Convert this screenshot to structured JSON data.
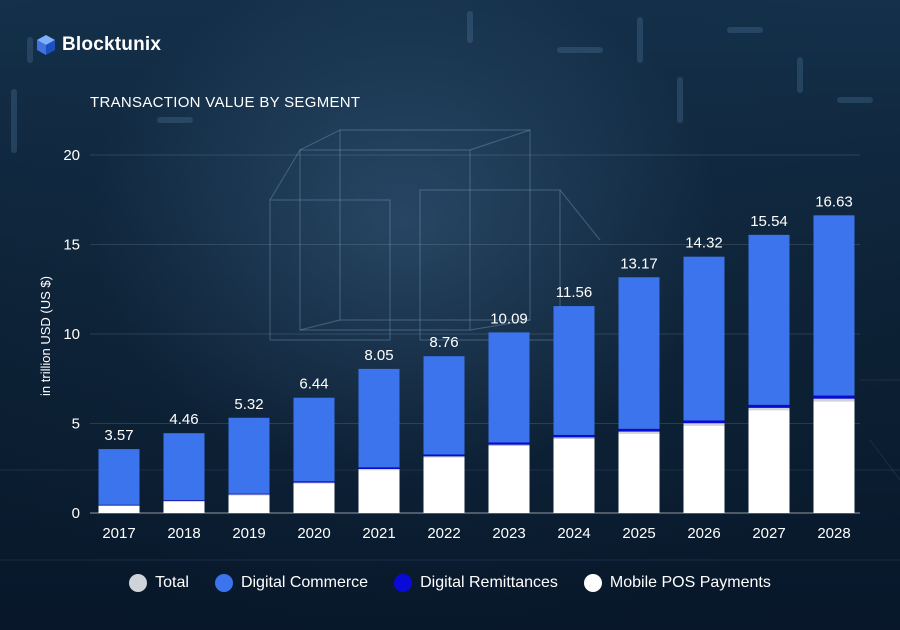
{
  "brand": {
    "name": "Blocktunix",
    "logo_icon": "cube-icon"
  },
  "colors": {
    "digital_commerce": "#3b74ec",
    "digital_remittances": "#0a0ad8",
    "mobile_pos": "#ffffff",
    "total": "#cfd4da",
    "text": "#ffffff"
  },
  "chart_data": {
    "type": "bar",
    "stacked": true,
    "title": "TRANSACTION VALUE BY SEGMENT",
    "ylabel": "in trillion USD (US $)",
    "xlabel": "",
    "ylim": [
      0,
      20
    ],
    "yticks": [
      0,
      5,
      10,
      15,
      20
    ],
    "grid": true,
    "legend_position": "bottom",
    "categories": [
      "2017",
      "2018",
      "2019",
      "2020",
      "2021",
      "2022",
      "2023",
      "2024",
      "2025",
      "2026",
      "2027",
      "2028"
    ],
    "totals": [
      "3.57",
      "4.46",
      "5.32",
      "6.44",
      "8.05",
      "8.76",
      "10.09",
      "11.56",
      "13.17",
      "14.32",
      "15.54",
      "16.63"
    ],
    "series": [
      {
        "name": "Mobile POS Payments",
        "values": [
          0.4,
          0.65,
          1.0,
          1.65,
          2.4,
          3.1,
          3.75,
          4.15,
          4.45,
          4.9,
          5.75,
          6.25
        ]
      },
      {
        "name": "Total",
        "values": [
          0.03,
          0.03,
          0.04,
          0.05,
          0.06,
          0.07,
          0.07,
          0.08,
          0.1,
          0.12,
          0.13,
          0.14
        ]
      },
      {
        "name": "Digital Remittances",
        "values": [
          0.03,
          0.04,
          0.04,
          0.07,
          0.09,
          0.1,
          0.12,
          0.13,
          0.15,
          0.15,
          0.16,
          0.17
        ]
      },
      {
        "name": "Digital Commerce",
        "values": [
          3.11,
          3.74,
          4.24,
          4.67,
          5.5,
          5.49,
          6.15,
          7.2,
          8.47,
          9.15,
          9.5,
          10.07
        ]
      }
    ]
  },
  "legend": [
    {
      "label": "Total",
      "color": "#cfd4da"
    },
    {
      "label": "Digital Commerce",
      "color": "#3b74ec"
    },
    {
      "label": "Digital Remittances",
      "color": "#0a0ad8"
    },
    {
      "label": "Mobile POS Payments",
      "color": "#ffffff"
    }
  ]
}
